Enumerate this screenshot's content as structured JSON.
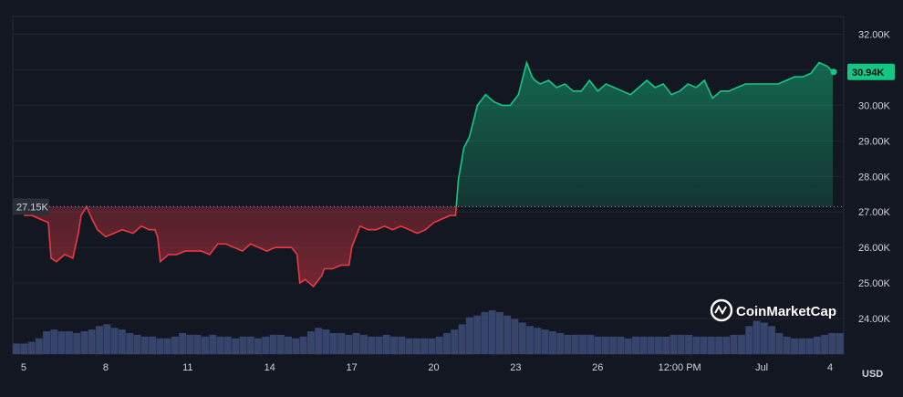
{
  "chart_data": {
    "type": "line",
    "series": [
      {
        "x": [
          5,
          5.3,
          5.6,
          5.9,
          6.0,
          6.2,
          6.5,
          6.8,
          7.0,
          7.1,
          7.3,
          7.5,
          7.7,
          8.0,
          8.3,
          8.6,
          9.0,
          9.3,
          9.6,
          9.8,
          9.9,
          10.0,
          10.3,
          10.6,
          10.9,
          11.2,
          11.5,
          11.8,
          12.1,
          12.4,
          12.7,
          13.0,
          13.3,
          13.6,
          13.9,
          14.2,
          14.5,
          14.8,
          15.0,
          15.1,
          15.3,
          15.6,
          15.9,
          16.0,
          16.3,
          16.6,
          16.9,
          17.0,
          17.3,
          17.6,
          17.9,
          18.2,
          18.5,
          18.8,
          19.1,
          19.4,
          19.7,
          20.0,
          20.3,
          20.6,
          20.8,
          20.9,
          21.1,
          21.3,
          21.6,
          21.9,
          22.2,
          22.5,
          22.8,
          23.1,
          23.4,
          23.6,
          23.7,
          23.9,
          24.2,
          24.5,
          24.8,
          25.1,
          25.4,
          25.7,
          26.0,
          26.3,
          26.6,
          26.9,
          27.2,
          27.5,
          27.8,
          28.1,
          28.4,
          28.7,
          29.0,
          29.3,
          29.6,
          29.9,
          30.2,
          30.5,
          30.8,
          31.1,
          31.4,
          31.7,
          32.0,
          32.3,
          32.6,
          32.9,
          33.2,
          33.5,
          33.8,
          34.1,
          34.4,
          34.6
        ],
        "values": [
          26.9,
          26.9,
          26.8,
          26.7,
          25.7,
          25.6,
          25.8,
          25.7,
          26.4,
          26.9,
          27.15,
          26.8,
          26.5,
          26.3,
          26.4,
          26.5,
          26.4,
          26.6,
          26.5,
          26.5,
          26.3,
          25.6,
          25.8,
          25.8,
          25.9,
          25.9,
          25.9,
          25.8,
          26.1,
          26.1,
          26.0,
          25.9,
          26.1,
          26.0,
          25.9,
          26.0,
          26.0,
          26.0,
          25.8,
          25.0,
          25.1,
          24.9,
          25.2,
          25.4,
          25.4,
          25.5,
          25.5,
          26.0,
          26.6,
          26.5,
          26.5,
          26.6,
          26.5,
          26.6,
          26.5,
          26.4,
          26.5,
          26.7,
          26.8,
          26.9,
          26.9,
          27.9,
          28.8,
          29.1,
          30.0,
          30.3,
          30.1,
          30.0,
          30.0,
          30.3,
          31.2,
          30.8,
          30.7,
          30.6,
          30.7,
          30.5,
          30.6,
          30.4,
          30.4,
          30.7,
          30.4,
          30.6,
          30.5,
          30.4,
          30.3,
          30.5,
          30.7,
          30.5,
          30.6,
          30.3,
          30.4,
          30.6,
          30.5,
          30.7,
          30.2,
          30.4,
          30.4,
          30.5,
          30.6,
          30.6,
          30.6,
          30.6,
          30.6,
          30.7,
          30.8,
          30.8,
          30.9,
          31.2,
          31.1,
          30.94
        ]
      }
    ],
    "volume": [
      6,
      6,
      7,
      9,
      13,
      14,
      13,
      13,
      12,
      13,
      14,
      16,
      17,
      15,
      14,
      12,
      11,
      10,
      10,
      9,
      9,
      10,
      12,
      11,
      11,
      10,
      11,
      10,
      10,
      9,
      10,
      10,
      9,
      10,
      11,
      11,
      10,
      9,
      10,
      13,
      15,
      14,
      12,
      12,
      11,
      12,
      11,
      10,
      10,
      11,
      10,
      10,
      9,
      9,
      9,
      9,
      10,
      12,
      14,
      17,
      21,
      22,
      24,
      25,
      24,
      22,
      20,
      18,
      16,
      15,
      14,
      13,
      12,
      11,
      11,
      11,
      11,
      10,
      10,
      10,
      10,
      9,
      10,
      10,
      10,
      10,
      10,
      11,
      11,
      11,
      10,
      10,
      10,
      10,
      10,
      11,
      11,
      16,
      19,
      18,
      16,
      12,
      10,
      9,
      9,
      9,
      10,
      11,
      12,
      12
    ],
    "ylim": [
      23.0,
      32.5
    ],
    "y_ticks": [
      "24.00K",
      "25.00K",
      "26.00K",
      "27.00K",
      "28.00K",
      "29.00K",
      "30.00K",
      "31.00K",
      "32.00K"
    ],
    "y_tick_values": [
      24,
      25,
      26,
      27,
      28,
      29,
      30,
      31,
      32
    ],
    "x_ticks": [
      "5",
      "8",
      "11",
      "14",
      "17",
      "20",
      "23",
      "26",
      "12:00 PM",
      "Jul",
      "4"
    ],
    "x_tick_values": [
      5,
      8,
      11,
      14,
      17,
      20,
      23,
      26,
      29,
      32,
      34.5
    ],
    "xlim": [
      4.6,
      35.0
    ],
    "baseline": {
      "value": 27.15,
      "label": "27.15K"
    },
    "last_price": {
      "value": 30.94,
      "label": "30.94K"
    },
    "grid": true,
    "colors": {
      "up": "#16c784",
      "down": "#ea3943",
      "volume": "#3c4a75",
      "badge": "#16c784"
    },
    "currency": "USD",
    "watermark": "CoinMarketCap"
  }
}
